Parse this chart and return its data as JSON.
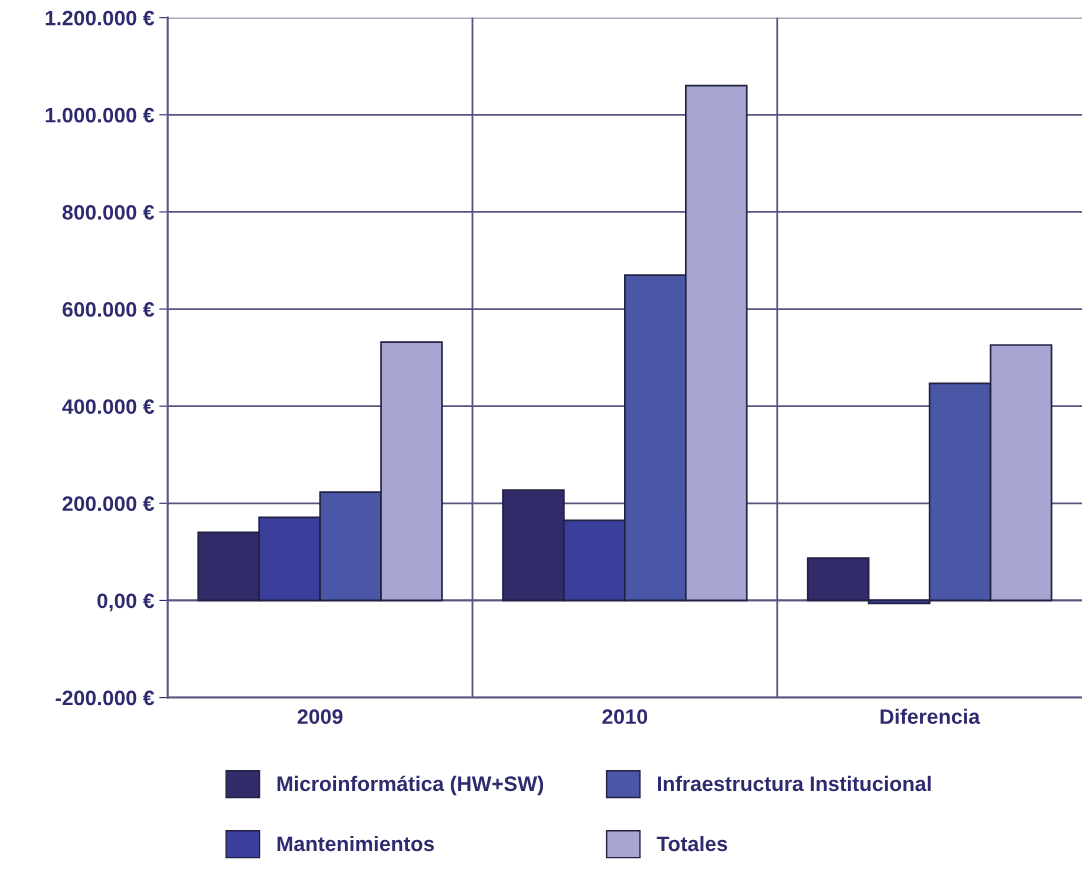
{
  "chart_data": {
    "type": "bar",
    "categories": [
      "2009",
      "2010",
      "Diferencia"
    ],
    "series": [
      {
        "name": "Microinformática (HW+SW)",
        "color": "#312b6a",
        "values": [
          140000,
          227000,
          87000
        ]
      },
      {
        "name": "Mantenimientos",
        "color": "#3b3f9c",
        "values": [
          171000,
          165000,
          -6000
        ]
      },
      {
        "name": "Infraestructura Institucional",
        "color": "#4a56a6",
        "values": [
          223000,
          670000,
          447000
        ]
      },
      {
        "name": "Totales",
        "color": "#a7a6d3",
        "values": [
          532000,
          1060000,
          526000
        ]
      }
    ],
    "ylim": [
      -200000,
      1200000
    ],
    "yticks": [
      {
        "value": -200000,
        "label": "-200.000 €"
      },
      {
        "value": 0,
        "label": "0,00 €"
      },
      {
        "value": 200000,
        "label": "200.000 €"
      },
      {
        "value": 400000,
        "label": "400.000 €"
      },
      {
        "value": 600000,
        "label": "600.000 €"
      },
      {
        "value": 800000,
        "label": "800.000 €"
      },
      {
        "value": 1000000,
        "label": "1.000.000 €"
      },
      {
        "value": 1200000,
        "label": "1.200.000 €"
      }
    ],
    "grid": true,
    "legend": "bottom"
  }
}
